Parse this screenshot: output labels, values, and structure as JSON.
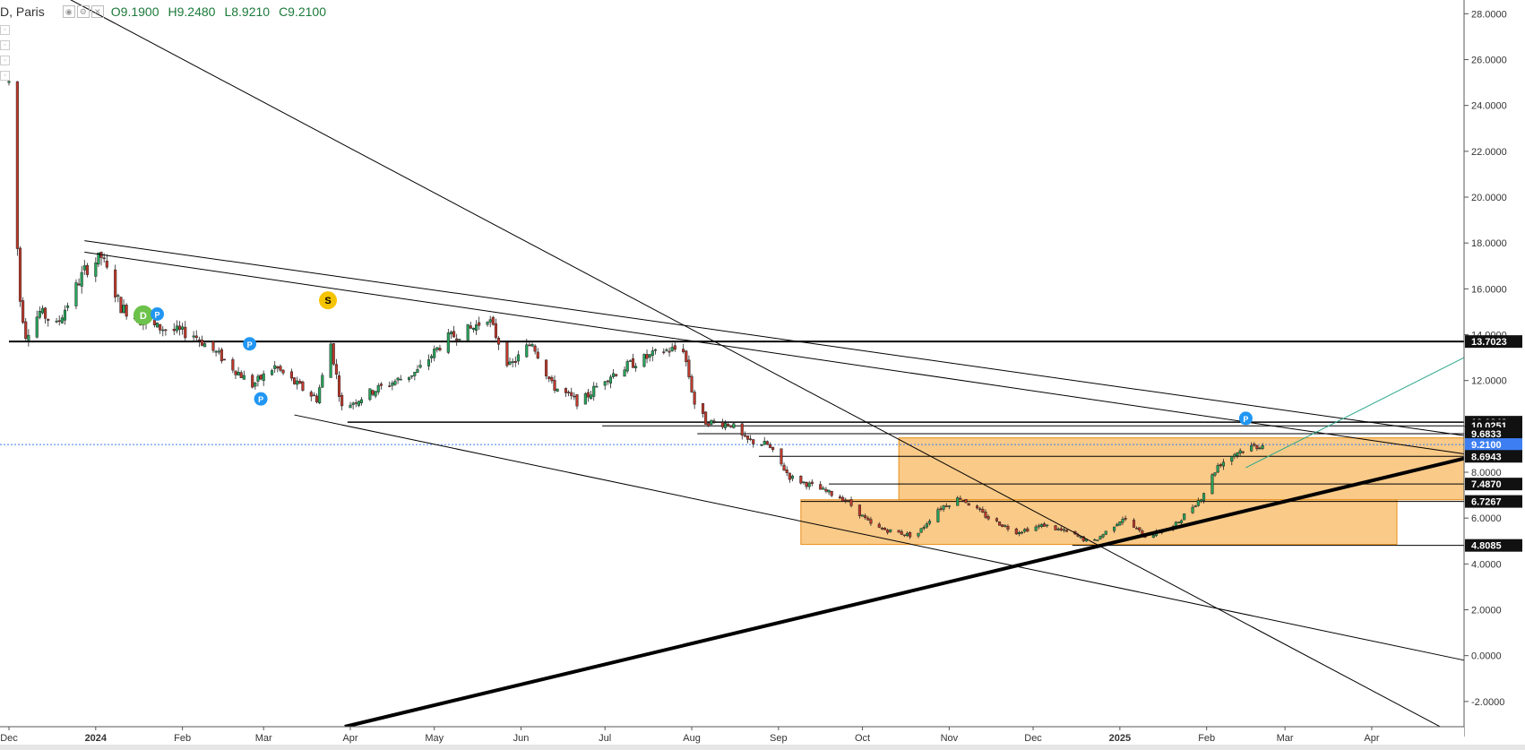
{
  "header": {
    "symbol": "D, Paris",
    "open": "O9.1900",
    "high": "H9.2480",
    "low": "L8.9210",
    "close": "C9.2100"
  },
  "colors": {
    "up": "#26a65b",
    "down": "#c0392b",
    "zone_fill": "#f7b860",
    "zone_stroke": "#e8901c",
    "price_badge": "#3d7ff2",
    "line": "#000000",
    "channel": "#2aa88a"
  },
  "chart_data": {
    "type": "candlestick",
    "price_axis": {
      "ylim": [
        -3.1,
        28.6
      ],
      "ticks": [
        "28.0000",
        "26.0000",
        "24.0000",
        "22.0000",
        "20.0000",
        "18.0000",
        "16.0000",
        "14.0000",
        "12.0000",
        "10.0000",
        "8.0000",
        "6.0000",
        "4.0000",
        "2.0000",
        "0.0000",
        "-2.0000"
      ]
    },
    "time_axis": {
      "start": "2023-12-01",
      "end": "2025-05-04",
      "labels": [
        {
          "text": "Dec",
          "date": "2023-12-01",
          "bold": false
        },
        {
          "text": "2024",
          "date": "2024-01-01",
          "bold": true
        },
        {
          "text": "Feb",
          "date": "2024-02-01",
          "bold": false
        },
        {
          "text": "Mar",
          "date": "2024-03-01",
          "bold": false
        },
        {
          "text": "Apr",
          "date": "2024-04-01",
          "bold": false
        },
        {
          "text": "May",
          "date": "2024-05-01",
          "bold": false
        },
        {
          "text": "Jun",
          "date": "2024-06-01",
          "bold": false
        },
        {
          "text": "Jul",
          "date": "2024-07-01",
          "bold": false
        },
        {
          "text": "Aug",
          "date": "2024-08-01",
          "bold": false
        },
        {
          "text": "Sep",
          "date": "2024-09-01",
          "bold": false
        },
        {
          "text": "Oct",
          "date": "2024-10-01",
          "bold": false
        },
        {
          "text": "Nov",
          "date": "2024-11-01",
          "bold": false
        },
        {
          "text": "Dec",
          "date": "2024-12-01",
          "bold": false
        },
        {
          "text": "2025",
          "date": "2025-01-01",
          "bold": true
        },
        {
          "text": "Feb",
          "date": "2025-02-01",
          "bold": false
        },
        {
          "text": "Mar",
          "date": "2025-03-01",
          "bold": false
        },
        {
          "text": "Apr",
          "date": "2025-04-01",
          "bold": false
        }
      ]
    },
    "price_path": [
      [
        "2023-12-01",
        25.0
      ],
      [
        "2023-12-03",
        20.0
      ],
      [
        "2023-12-05",
        15.5
      ],
      [
        "2023-12-07",
        14.0
      ],
      [
        "2023-12-12",
        15.0
      ],
      [
        "2023-12-18",
        14.4
      ],
      [
        "2023-12-28",
        16.8
      ],
      [
        "2024-01-03",
        17.4
      ],
      [
        "2024-01-10",
        15.2
      ],
      [
        "2024-01-20",
        14.4
      ],
      [
        "2024-02-05",
        14.0
      ],
      [
        "2024-02-15",
        13.0
      ],
      [
        "2024-02-26",
        11.8
      ],
      [
        "2024-03-05",
        12.6
      ],
      [
        "2024-03-12",
        11.9
      ],
      [
        "2024-03-20",
        11.2
      ],
      [
        "2024-03-25",
        13.6
      ],
      [
        "2024-03-29",
        10.8
      ],
      [
        "2024-04-10",
        11.6
      ],
      [
        "2024-04-25",
        12.4
      ],
      [
        "2024-05-05",
        13.8
      ],
      [
        "2024-05-15",
        14.3
      ],
      [
        "2024-05-20",
        14.8
      ],
      [
        "2024-05-28",
        12.6
      ],
      [
        "2024-06-05",
        13.7
      ],
      [
        "2024-06-12",
        11.8
      ],
      [
        "2024-06-22",
        11.0
      ],
      [
        "2024-07-01",
        12.1
      ],
      [
        "2024-07-10",
        12.7
      ],
      [
        "2024-07-22",
        13.3
      ],
      [
        "2024-07-29",
        13.4
      ],
      [
        "2024-08-02",
        11.0
      ],
      [
        "2024-08-06",
        10.2
      ],
      [
        "2024-08-15",
        10.1
      ],
      [
        "2024-08-20",
        9.4
      ],
      [
        "2024-08-28",
        9.2
      ],
      [
        "2024-09-05",
        7.8
      ],
      [
        "2024-09-15",
        7.3
      ],
      [
        "2024-09-25",
        6.8
      ],
      [
        "2024-10-05",
        5.6
      ],
      [
        "2024-10-20",
        5.2
      ],
      [
        "2024-10-28",
        6.4
      ],
      [
        "2024-11-05",
        6.9
      ],
      [
        "2024-11-15",
        6.0
      ],
      [
        "2024-11-25",
        5.4
      ],
      [
        "2024-12-05",
        5.7
      ],
      [
        "2024-12-15",
        5.3
      ],
      [
        "2024-12-22",
        4.9
      ],
      [
        "2025-01-02",
        6.0
      ],
      [
        "2025-01-10",
        5.2
      ],
      [
        "2025-01-20",
        5.6
      ],
      [
        "2025-01-30",
        6.9
      ],
      [
        "2025-02-05",
        8.3
      ],
      [
        "2025-02-12",
        8.9
      ],
      [
        "2025-02-17",
        9.1
      ],
      [
        "2025-02-21",
        9.2
      ]
    ],
    "zones": [
      {
        "x0": "2024-10-14",
        "x1": "2025-05-04",
        "y0": 6.8,
        "y1": 9.5
      },
      {
        "x0": "2024-09-09",
        "x1": "2025-04-10",
        "y0": 4.85,
        "y1": 6.8
      }
    ],
    "horizontal_lines": [
      {
        "y": 13.7023,
        "x0": "2023-12-01",
        "x1": "2025-05-04",
        "width": 2
      },
      {
        "y": 10.1843,
        "x0": "2024-03-31",
        "x1": "2025-05-04",
        "width": 1.5
      },
      {
        "y": 10.0251,
        "x0": "2024-06-30",
        "x1": "2025-05-04",
        "width": 1
      },
      {
        "y": 9.6833,
        "x0": "2024-08-03",
        "x1": "2025-05-04",
        "width": 1
      },
      {
        "y": 8.6943,
        "x0": "2024-08-25",
        "x1": "2025-05-04",
        "width": 1
      },
      {
        "y": 7.487,
        "x0": "2024-09-19",
        "x1": "2025-05-04",
        "width": 1
      },
      {
        "y": 6.7267,
        "x0": "2024-09-09",
        "x1": "2025-05-04",
        "width": 1
      },
      {
        "y": 4.8085,
        "x0": "2024-12-15",
        "x1": "2025-05-04",
        "width": 1
      }
    ],
    "trend_lines": [
      {
        "x0": "2023-12-17",
        "y0": 29.0,
        "x1": "2025-04-27",
        "y1": -3.2,
        "width": 1
      },
      {
        "x0": "2023-12-28",
        "y0": 18.1,
        "x1": "2025-05-04",
        "y1": 9.6,
        "width": 1
      },
      {
        "x0": "2023-12-28",
        "y0": 17.6,
        "x1": "2025-05-04",
        "y1": 8.8,
        "width": 1
      },
      {
        "x0": "2024-03-12",
        "y0": 10.5,
        "x1": "2025-05-04",
        "y1": -0.2,
        "width": 1
      },
      {
        "x0": "2024-03-30",
        "y0": -3.1,
        "x1": "2025-05-04",
        "y1": 8.6,
        "width": 4
      },
      {
        "x0": "2025-02-15",
        "y0": 8.2,
        "x1": "2025-05-04",
        "y1": 13.0,
        "width": 1,
        "color": "#2aa88a"
      }
    ],
    "price_labels": [
      {
        "text": "13.7023",
        "y": 13.7023,
        "style": "dark"
      },
      {
        "text": "10.1843",
        "y": 10.1843,
        "style": "dark"
      },
      {
        "text": "10.0251",
        "y": 10.0251,
        "style": "dark"
      },
      {
        "text": "9.6833",
        "y": 9.6833,
        "style": "dark"
      },
      {
        "text": "9.2100",
        "y": 9.21,
        "style": "current"
      },
      {
        "text": "8.6943",
        "y": 8.6943,
        "style": "dark"
      },
      {
        "text": "7.4870",
        "y": 7.487,
        "style": "dark"
      },
      {
        "text": "6.7267",
        "y": 6.7267,
        "style": "dark"
      },
      {
        "text": "4.8085",
        "y": 4.8085,
        "style": "dark"
      }
    ],
    "current_price": 9.21,
    "markers": [
      {
        "text": "D",
        "date": "2024-01-18",
        "price": 14.85,
        "color": "#6cc24a",
        "size": 11
      },
      {
        "text": "P",
        "date": "2024-01-23",
        "price": 14.9,
        "color": "#2196f3",
        "size": 7.5
      },
      {
        "text": "P",
        "date": "2024-02-25",
        "price": 13.6,
        "color": "#2196f3",
        "size": 7.5
      },
      {
        "text": "P",
        "date": "2024-02-29",
        "price": 11.2,
        "color": "#2196f3",
        "size": 7.5
      },
      {
        "text": "S",
        "date": "2024-03-24",
        "price": 15.5,
        "color": "#f5c400",
        "size": 10
      },
      {
        "text": "P",
        "date": "2025-02-15",
        "price": 10.35,
        "color": "#2196f3",
        "size": 7.5
      }
    ]
  }
}
